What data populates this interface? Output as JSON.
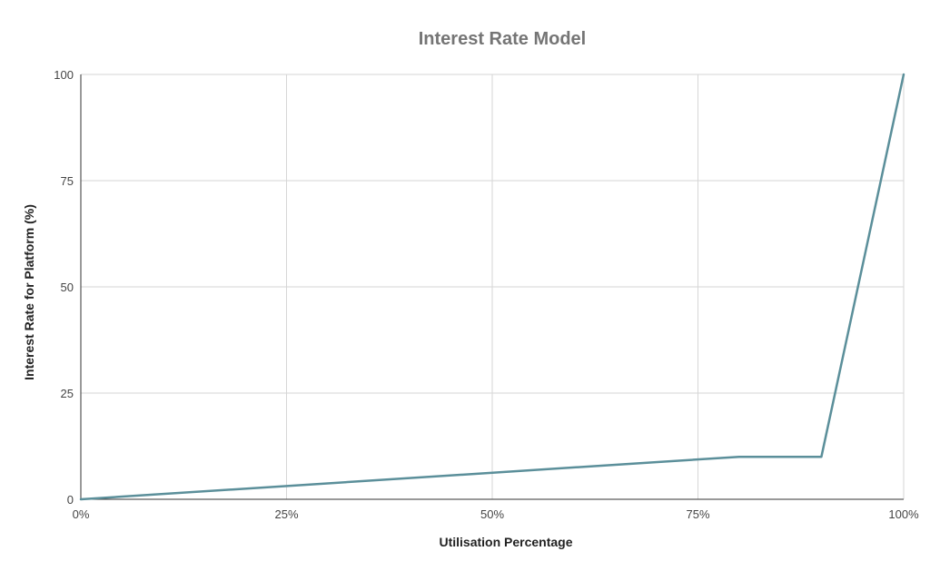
{
  "chart_data": {
    "type": "line",
    "title": "Interest Rate Model",
    "xlabel": "Utilisation Percentage",
    "ylabel": "Interest Rate for Platform (%)",
    "xlim": [
      0,
      100
    ],
    "ylim": [
      0,
      100
    ],
    "x_ticks": [
      "0%",
      "25%",
      "50%",
      "75%",
      "100%"
    ],
    "y_ticks": [
      "0",
      "25",
      "50",
      "75",
      "100"
    ],
    "grid": true,
    "legend": "none",
    "series": [
      {
        "color": "#5b8f9a",
        "points": [
          {
            "x": 0,
            "y": 0
          },
          {
            "x": 80,
            "y": 10
          },
          {
            "x": 90,
            "y": 10
          },
          {
            "x": 100,
            "y": 100
          }
        ]
      }
    ]
  }
}
